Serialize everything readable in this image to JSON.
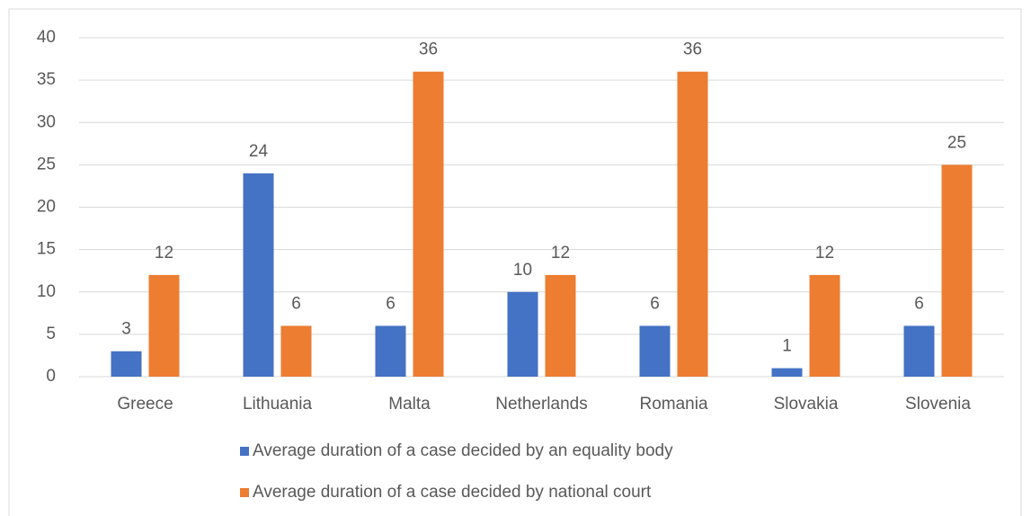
{
  "chart_data": {
    "type": "bar",
    "categories": [
      "Greece",
      "Lithuania",
      "Malta",
      "Netherlands",
      "Romania",
      "Slovakia",
      "Slovenia"
    ],
    "series": [
      {
        "name": "Average duration of a case decided by an equality body",
        "color": "#4472c4",
        "values": [
          3,
          24,
          6,
          10,
          6,
          1,
          6
        ]
      },
      {
        "name": "Average duration of a case decided by national court",
        "color": "#ed7d31",
        "values": [
          12,
          6,
          36,
          12,
          36,
          12,
          25
        ]
      }
    ],
    "ylim": [
      0,
      40
    ],
    "yticks": [
      0,
      5,
      10,
      15,
      20,
      25,
      30,
      35,
      40
    ],
    "grid": true,
    "legend": "bottom"
  }
}
